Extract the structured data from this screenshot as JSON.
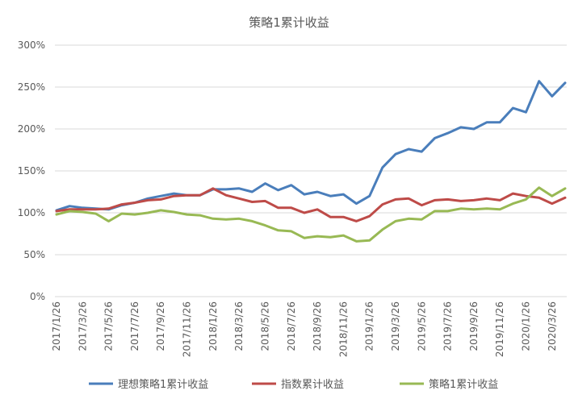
{
  "chart_data": {
    "type": "line",
    "title": "策略1累计收益",
    "ylim": [
      0,
      300
    ],
    "yticks": [
      "0%",
      "50%",
      "100%",
      "150%",
      "200%",
      "250%",
      "300%"
    ],
    "ytick_values": [
      0,
      50,
      100,
      150,
      200,
      250,
      300
    ],
    "grid": true,
    "legend_position": "bottom",
    "x": [
      "2017/1/26",
      "2017/2/26",
      "2017/3/26",
      "2017/4/26",
      "2017/5/26",
      "2017/6/26",
      "2017/7/26",
      "2017/8/26",
      "2017/9/26",
      "2017/10/26",
      "2017/11/26",
      "2017/12/26",
      "2018/1/26",
      "2018/2/26",
      "2018/3/26",
      "2018/4/26",
      "2018/5/26",
      "2018/6/26",
      "2018/7/26",
      "2018/8/26",
      "2018/9/26",
      "2018/10/26",
      "2018/11/26",
      "2018/12/26",
      "2019/1/26",
      "2019/2/26",
      "2019/3/26",
      "2019/4/26",
      "2019/5/26",
      "2019/6/26",
      "2019/7/26",
      "2019/8/26",
      "2019/9/26",
      "2019/10/26",
      "2019/11/26",
      "2019/12/26",
      "2020/1/26",
      "2020/2/26",
      "2020/3/26",
      "2020/4/26"
    ],
    "xtick_labels": [
      "2017/1/26",
      "2017/3/26",
      "2017/5/26",
      "2017/7/26",
      "2017/9/26",
      "2017/11/26",
      "2018/1/26",
      "2018/3/26",
      "2018/5/26",
      "2018/7/26",
      "2018/9/26",
      "2018/11/26",
      "2019/1/26",
      "2019/3/26",
      "2019/5/26",
      "2019/7/26",
      "2019/9/26",
      "2019/11/26",
      "2020/1/26",
      "2020/3/26"
    ],
    "series": [
      {
        "name": "理想策略1累计收益",
        "color": "#4a7ebb",
        "values": [
          103,
          108,
          106,
          105,
          104,
          109,
          112,
          117,
          120,
          123,
          121,
          121,
          128,
          128,
          129,
          125,
          135,
          127,
          133,
          122,
          125,
          120,
          122,
          111,
          120,
          154,
          170,
          176,
          173,
          189,
          195,
          202,
          200,
          208,
          208,
          225,
          220,
          257,
          239,
          255
        ]
      },
      {
        "name": "指数累计收益",
        "color": "#be4b48",
        "values": [
          102,
          104,
          104,
          104,
          105,
          110,
          112,
          115,
          116,
          120,
          121,
          121,
          129,
          121,
          117,
          113,
          114,
          106,
          106,
          100,
          104,
          95,
          95,
          90,
          96,
          110,
          116,
          117,
          109,
          115,
          116,
          114,
          115,
          117,
          115,
          123,
          120,
          118,
          111,
          118
        ]
      },
      {
        "name": "策略1累计收益",
        "color": "#98b954",
        "values": [
          98,
          102,
          101,
          99,
          90,
          99,
          98,
          100,
          103,
          101,
          98,
          97,
          93,
          92,
          93,
          90,
          85,
          79,
          78,
          70,
          72,
          71,
          73,
          66,
          67,
          80,
          90,
          93,
          92,
          102,
          102,
          105,
          104,
          105,
          104,
          111,
          116,
          130,
          120,
          129
        ]
      }
    ]
  }
}
